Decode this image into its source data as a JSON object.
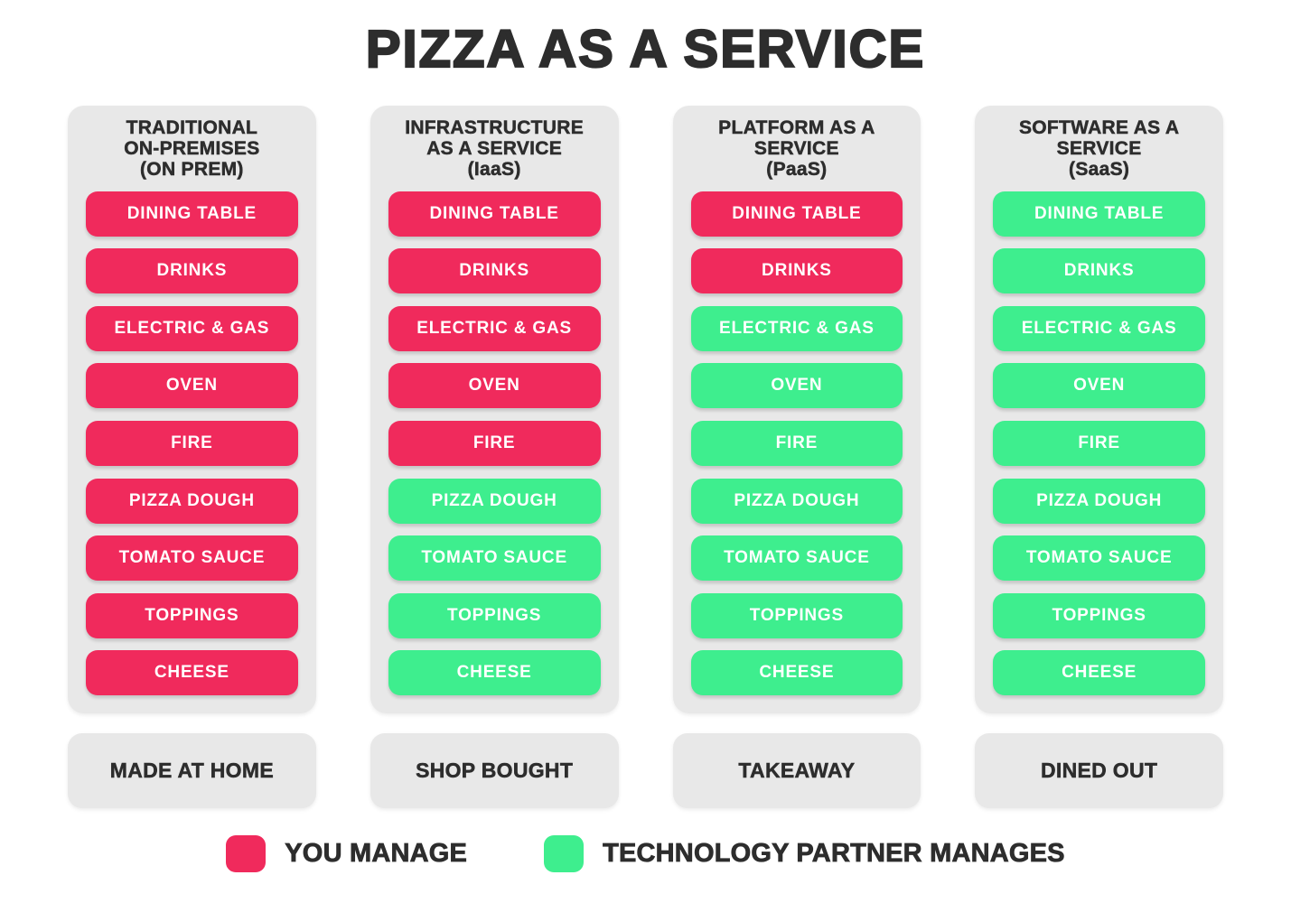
{
  "title": "PIZZA AS A SERVICE",
  "colors": {
    "you_manage": "#F02A5C",
    "partner_manages": "#3EEE8E",
    "panel_bg": "#E8E8E8",
    "text": "#2D2D2D",
    "pill_text": "#FFFFFF"
  },
  "services": [
    "DINING TABLE",
    "DRINKS",
    "ELECTRIC & GAS",
    "OVEN",
    "FIRE",
    "PIZZA DOUGH",
    "TOMATO SAUCE",
    "TOPPINGS",
    "CHEESE"
  ],
  "columns": [
    {
      "id": "onprem",
      "header": "TRADITIONAL\nON-PREMISES\n(ON PREM)",
      "analogy": "MADE AT HOME",
      "you_manage_count": 9
    },
    {
      "id": "iaas",
      "header": "INFRASTRUCTURE\nAS A SERVICE\n(IaaS)",
      "analogy": "SHOP BOUGHT",
      "you_manage_count": 5
    },
    {
      "id": "paas",
      "header": "PLATFORM AS A\nSERVICE\n(PaaS)",
      "analogy": "TAKEAWAY",
      "you_manage_count": 2
    },
    {
      "id": "saas",
      "header": "SOFTWARE AS A\nSERVICE\n(SaaS)",
      "analogy": "DINED OUT",
      "you_manage_count": 0
    }
  ],
  "legend": [
    {
      "label": "YOU MANAGE",
      "color_key": "you_manage"
    },
    {
      "label": "TECHNOLOGY PARTNER MANAGES",
      "color_key": "partner_manages"
    }
  ]
}
